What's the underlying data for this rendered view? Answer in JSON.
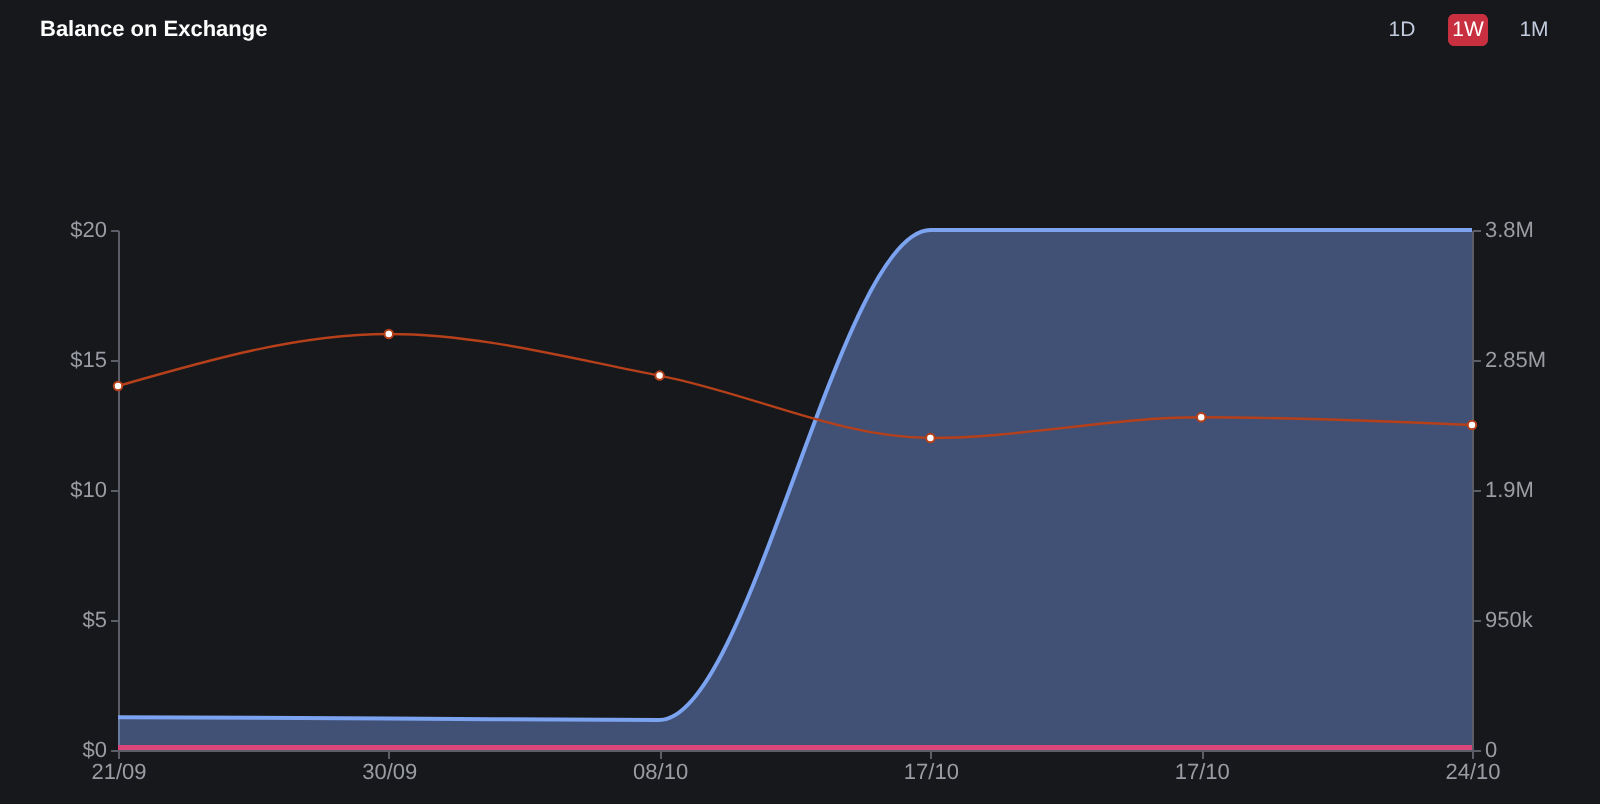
{
  "chart_data": {
    "type": "line",
    "title": "Balance on Exchange",
    "categories": [
      "21/09",
      "30/09",
      "08/10",
      "17/10",
      "17/10",
      "24/10"
    ],
    "series": [
      {
        "type": "area",
        "axis": "y2",
        "color": "#7ba3f0",
        "values": [
          240000,
          230000,
          220000,
          3800000,
          3800000,
          3800000
        ]
      },
      {
        "color": "#d9467a",
        "values": [
          0.1,
          0.1,
          0.1,
          0.1,
          0.1,
          0.1
        ]
      },
      {
        "color": "#b5401a",
        "marker": "circle",
        "values": [
          14,
          16,
          14.4,
          12,
          12.8,
          12.5
        ]
      }
    ],
    "ylim": [
      0,
      20
    ],
    "yticks": [
      {
        "value": 0,
        "label": "$0"
      },
      {
        "value": 5,
        "label": "$5"
      },
      {
        "value": 10,
        "label": "$10"
      },
      {
        "value": 15,
        "label": "$15"
      },
      {
        "value": 20,
        "label": "$20"
      }
    ],
    "y2lim": [
      0,
      3800000
    ],
    "y2ticks": [
      0,
      {
        "value": 950000,
        "label": "950k"
      },
      {
        "value": 1900000,
        "label": "1.9M"
      },
      {
        "value": 2850000,
        "label": "2.85M"
      },
      {
        "value": 3800000,
        "label": "3.8M"
      }
    ],
    "annotations": [
      "1D",
      "1W",
      "1M"
    ]
  }
}
